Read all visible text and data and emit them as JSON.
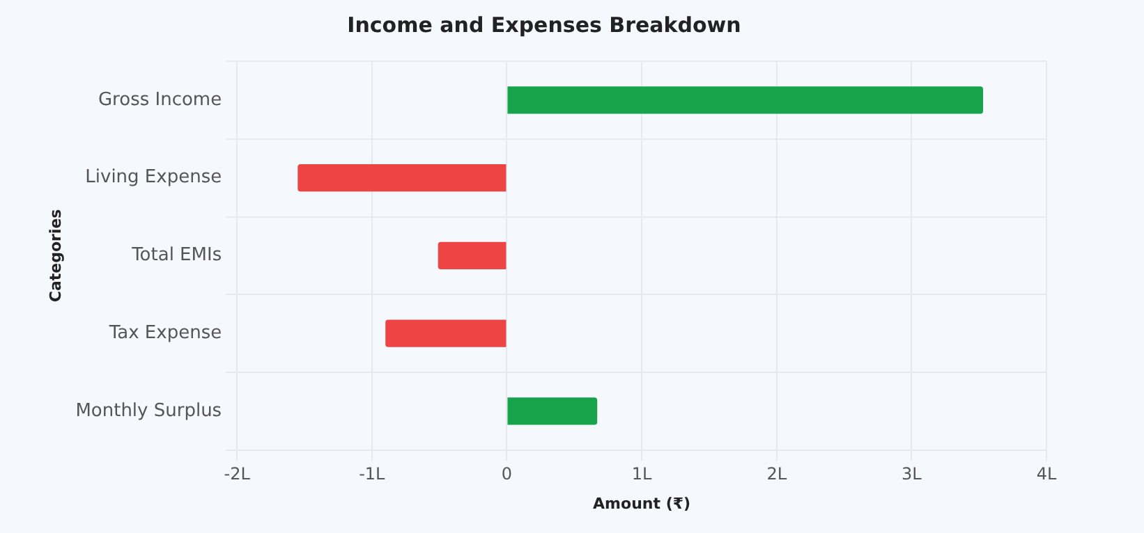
{
  "chart_data": {
    "type": "bar",
    "orientation": "horizontal",
    "title": "Income and Expenses Breakdown",
    "xlabel": "Amount (₹)",
    "ylabel": "Categories",
    "categories": [
      "Gross Income",
      "Living Expense",
      "Total EMIs",
      "Tax Expense",
      "Monthly Surplus"
    ],
    "values": [
      3.53,
      -1.55,
      -0.51,
      -0.9,
      0.67
    ],
    "colors": [
      "#16a34a",
      "#ef4444",
      "#ef4444",
      "#ef4444",
      "#16a34a"
    ],
    "xlim": [
      -2,
      4
    ],
    "xticks": [
      {
        "value": -2,
        "label": "-2L"
      },
      {
        "value": -1,
        "label": "-1L"
      },
      0,
      {
        "value": 1,
        "label": "1L"
      },
      {
        "value": 2,
        "label": "2L"
      },
      {
        "value": 3,
        "label": "3L"
      },
      {
        "value": 4,
        "label": "4L"
      }
    ],
    "grid": true
  }
}
